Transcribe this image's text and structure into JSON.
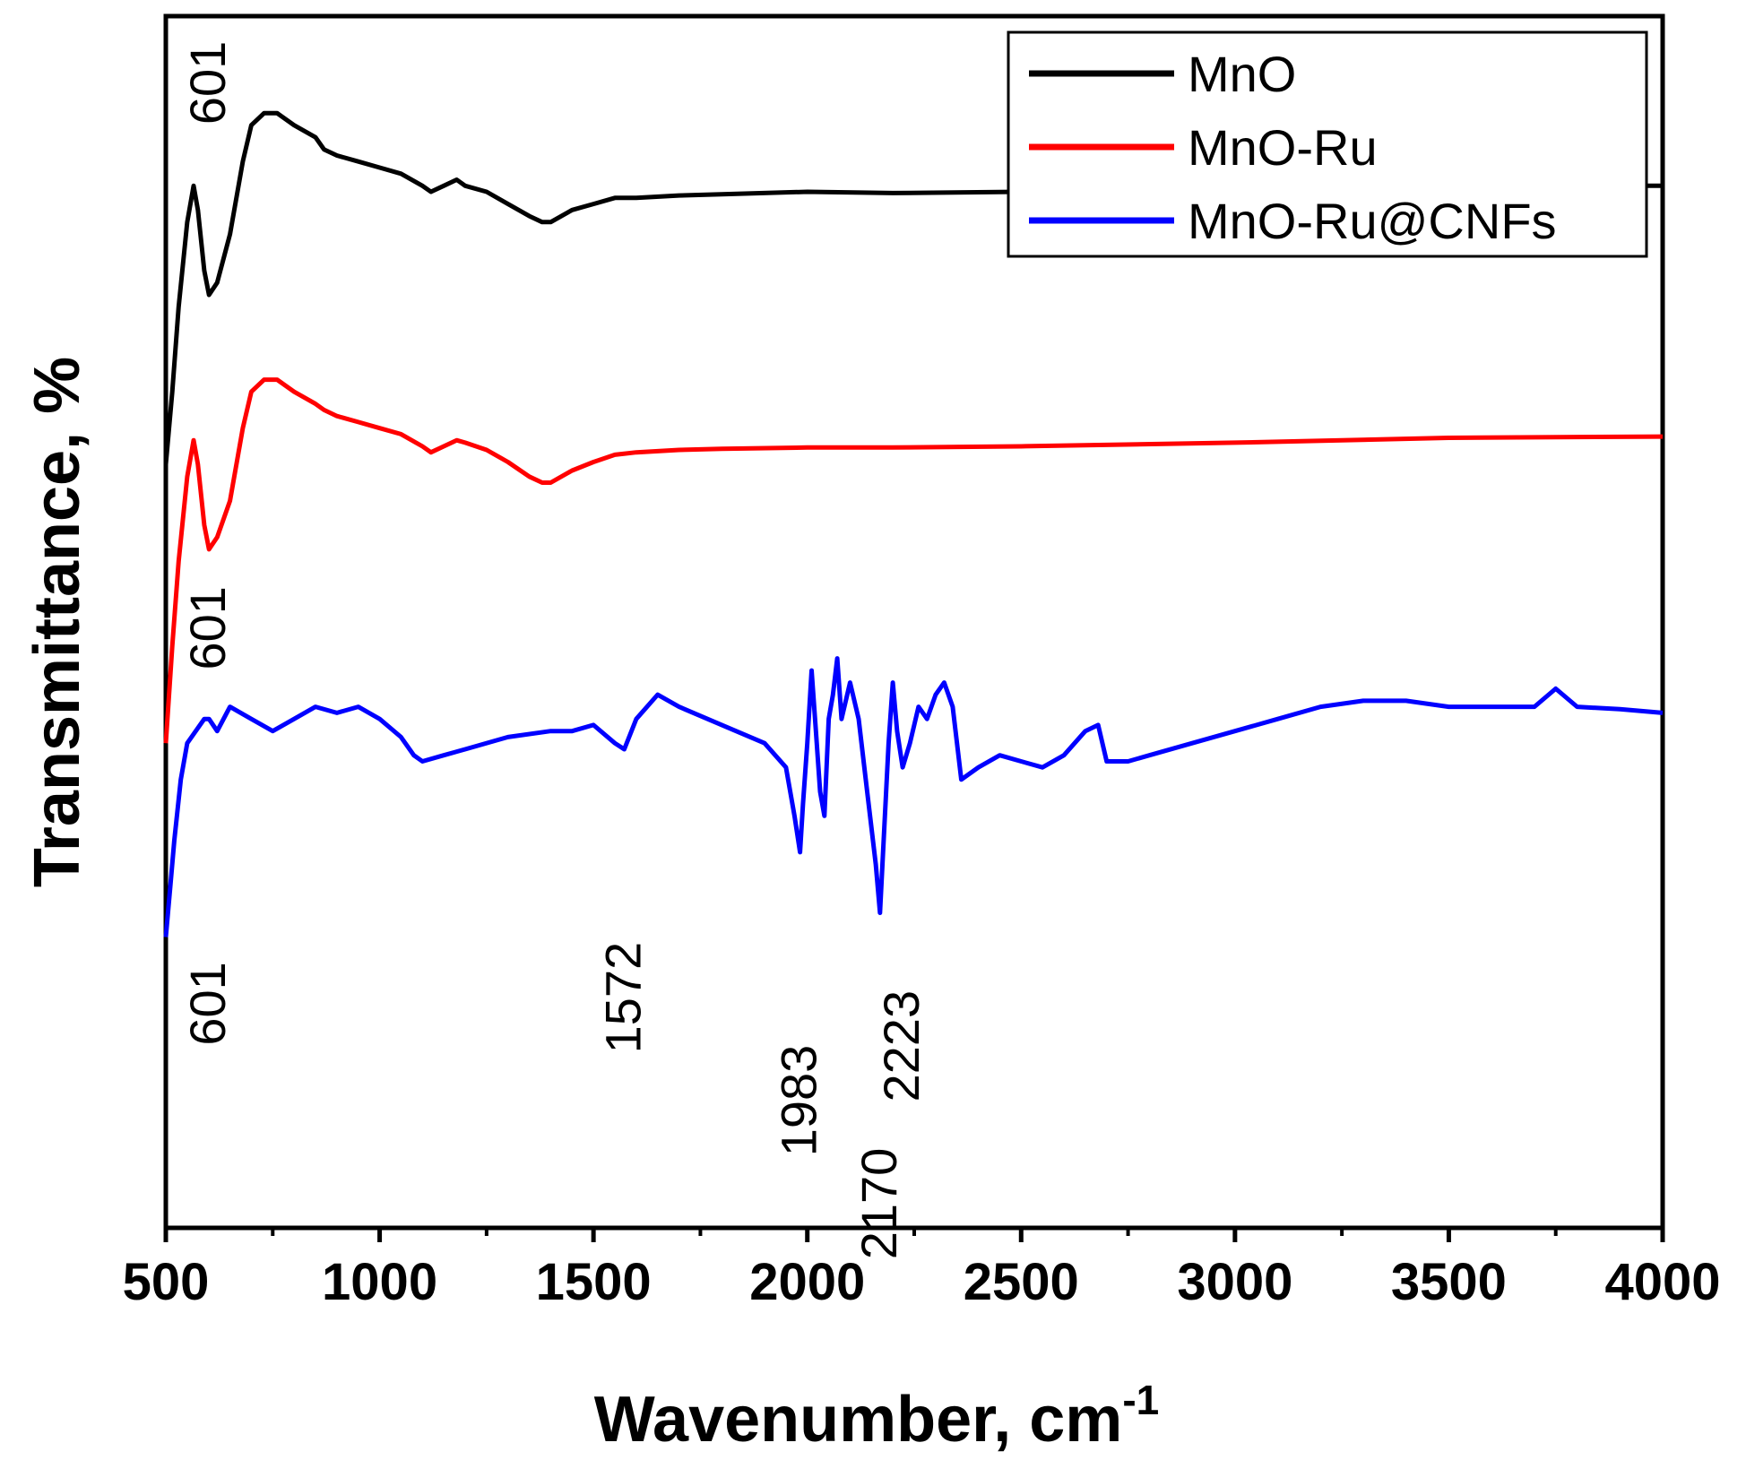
{
  "chart_data": {
    "type": "line",
    "title": "",
    "xlabel": "Wavenumber, cm",
    "xlabel_superscript": "-1",
    "ylabel": "Transmittance, %",
    "xlim": [
      500,
      4000
    ],
    "ylim": [
      0,
      100
    ],
    "xticks": [
      "500",
      "1000",
      "1500",
      "2000",
      "2500",
      "3000",
      "3500",
      "4000"
    ],
    "yticks": [],
    "grid": false,
    "legend": {
      "position": "top-right"
    },
    "series": [
      {
        "name": "MnO",
        "color": "#000000",
        "x": [
          500,
          515,
          530,
          550,
          565,
          575,
          590,
          601,
          620,
          650,
          680,
          700,
          730,
          760,
          800,
          850,
          870,
          900,
          950,
          1000,
          1050,
          1100,
          1120,
          1150,
          1180,
          1200,
          1250,
          1300,
          1350,
          1380,
          1400,
          1450,
          1500,
          1550,
          1600,
          1700,
          1800,
          2000,
          2200,
          2500,
          3000,
          3500,
          4000
        ],
        "y": [
          63,
          69,
          76,
          83,
          86,
          84,
          79,
          77,
          78,
          82,
          88,
          91,
          92,
          92,
          91,
          90,
          89,
          88.5,
          88,
          87.5,
          87,
          86,
          85.5,
          86,
          86.5,
          86,
          85.5,
          84.5,
          83.5,
          83,
          83,
          84,
          84.5,
          85,
          85,
          85.2,
          85.3,
          85.5,
          85.4,
          85.5,
          85.7,
          86,
          86
        ]
      },
      {
        "name": "MnO-Ru",
        "color": "#ff0000",
        "x": [
          500,
          515,
          530,
          550,
          565,
          575,
          590,
          601,
          620,
          650,
          680,
          700,
          730,
          760,
          800,
          850,
          870,
          900,
          950,
          1000,
          1050,
          1100,
          1120,
          1150,
          1180,
          1200,
          1250,
          1300,
          1350,
          1380,
          1400,
          1450,
          1500,
          1550,
          1600,
          1700,
          1800,
          2000,
          2200,
          2500,
          3000,
          3500,
          4000
        ],
        "y": [
          40,
          48,
          55,
          62,
          65,
          63,
          58,
          56,
          57,
          60,
          66,
          69,
          70,
          70,
          69,
          68,
          67.5,
          67,
          66.5,
          66,
          65.5,
          64.5,
          64,
          64.5,
          65,
          64.8,
          64.2,
          63.2,
          62,
          61.5,
          61.5,
          62.5,
          63.2,
          63.8,
          64,
          64.2,
          64.3,
          64.4,
          64.4,
          64.5,
          64.8,
          65.2,
          65.3
        ]
      },
      {
        "name": "MnO-Ru@CNFs",
        "color": "#0000ff",
        "x": [
          500,
          510,
          520,
          535,
          550,
          570,
          590,
          601,
          620,
          650,
          700,
          750,
          800,
          850,
          900,
          950,
          1000,
          1050,
          1080,
          1100,
          1150,
          1200,
          1300,
          1400,
          1450,
          1500,
          1550,
          1572,
          1600,
          1650,
          1700,
          1800,
          1900,
          1950,
          1970,
          1983,
          1990,
          2000,
          2010,
          2020,
          2030,
          2040,
          2050,
          2060,
          2070,
          2080,
          2100,
          2120,
          2140,
          2160,
          2170,
          2180,
          2190,
          2200,
          2210,
          2223,
          2240,
          2260,
          2280,
          2300,
          2320,
          2340,
          2350,
          2360,
          2400,
          2450,
          2500,
          2550,
          2600,
          2650,
          2680,
          2700,
          2750,
          2800,
          2900,
          3000,
          3100,
          3200,
          3300,
          3400,
          3500,
          3600,
          3700,
          3750,
          3800,
          3900,
          4000
        ],
        "y": [
          24,
          28,
          32,
          37,
          40,
          41,
          42,
          42,
          41,
          43,
          42,
          41,
          42,
          43,
          42.5,
          43,
          42,
          40.5,
          39,
          38.5,
          39,
          39.5,
          40.5,
          41,
          41,
          41.5,
          40,
          39.5,
          42,
          44,
          43,
          41.5,
          40,
          38,
          34,
          31,
          35,
          40,
          46,
          41,
          36,
          34,
          42,
          44,
          47,
          42,
          45,
          42,
          36,
          30,
          26,
          33,
          40,
          45,
          41,
          38,
          40,
          43,
          42,
          44,
          45,
          43,
          40,
          37,
          38,
          39,
          38.5,
          38,
          39,
          41,
          41.5,
          38.5,
          38.5,
          39,
          40,
          41,
          42,
          43,
          43.5,
          43.5,
          43,
          43,
          43,
          44.5,
          43,
          42.8,
          42.5
        ]
      }
    ],
    "annotations": [
      {
        "text": "601",
        "series": "MnO",
        "x": 601,
        "y": 94.5
      },
      {
        "text": "601",
        "series": "MnO-Ru",
        "x": 601,
        "y": 49.5
      },
      {
        "text": "601",
        "series": "MnO-Ru@CNFs",
        "x": 601,
        "y": 18.5
      },
      {
        "text": "1572",
        "series": "MnO-Ru@CNFs",
        "x": 1572,
        "y": 19
      },
      {
        "text": "1983",
        "series": "MnO-Ru@CNFs",
        "x": 1983,
        "y": 10.5
      },
      {
        "text": "2170",
        "series": "MnO-Ru@CNFs",
        "x": 2170,
        "y": 2
      },
      {
        "text": "2223",
        "series": "MnO-Ru@CNFs",
        "x": 2223,
        "y": 15
      }
    ]
  }
}
